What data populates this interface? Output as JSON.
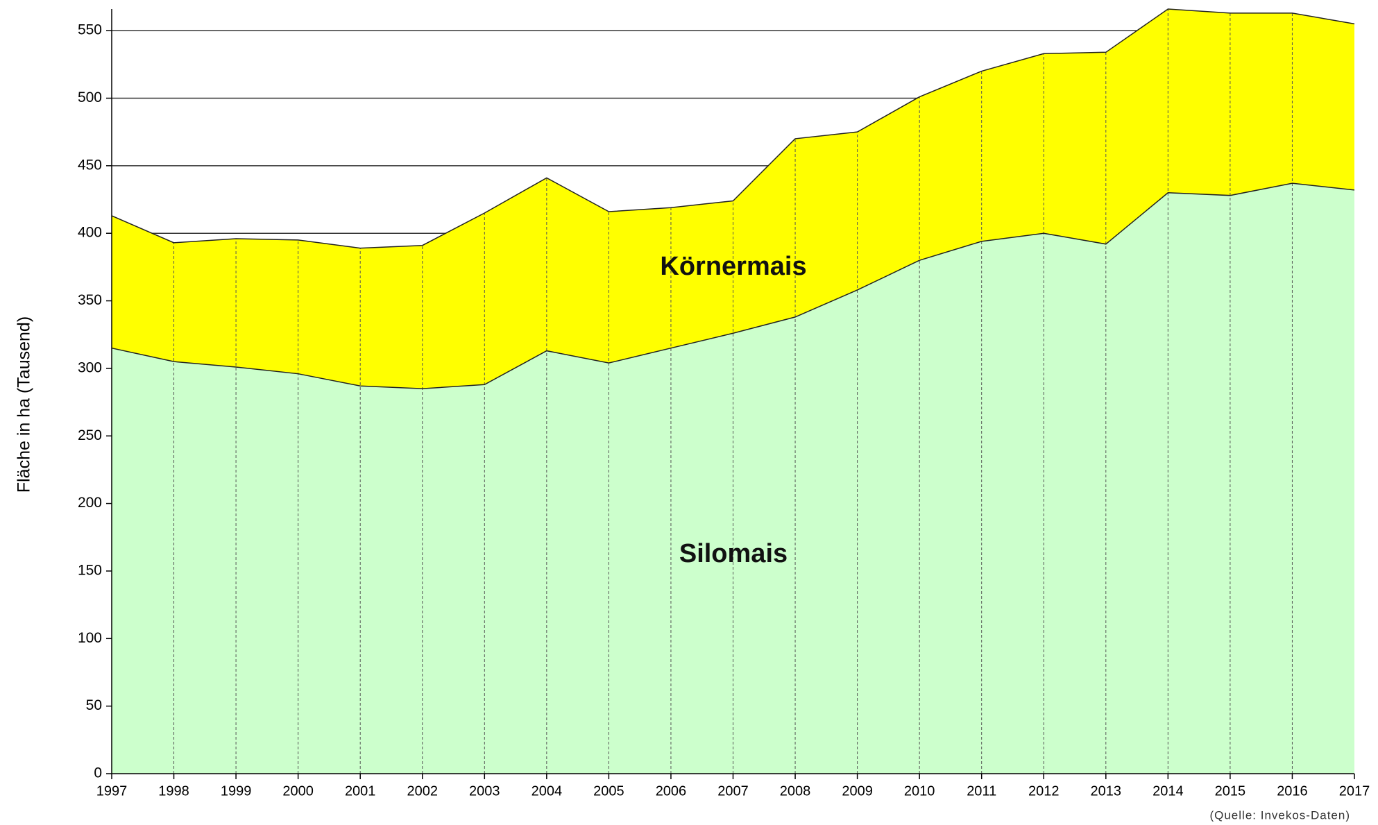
{
  "chart_data": {
    "type": "stacked_area",
    "y_label": "Fläche in ha (Tausend)",
    "note": "(Quelle: Invekos-Daten)",
    "x": [
      1997,
      1998,
      1999,
      2000,
      2001,
      2002,
      2003,
      2004,
      2005,
      2006,
      2007,
      2008,
      2009,
      2010,
      2011,
      2012,
      2013,
      2014,
      2015,
      2016,
      2017
    ],
    "xlim": [
      1997,
      2017
    ],
    "xticks": [
      1997,
      1998,
      1999,
      2000,
      2001,
      2002,
      2003,
      2004,
      2005,
      2006,
      2007,
      2008,
      2009,
      2010,
      2011,
      2012,
      2013,
      2014,
      2015,
      2016,
      2017
    ],
    "ylim": [
      0,
      566
    ],
    "yticks": [
      0,
      50,
      100,
      150,
      200,
      250,
      300,
      350,
      400,
      450,
      500,
      550
    ],
    "grid": true,
    "series": [
      {
        "name": "Silomais",
        "color": "#ccffcc",
        "values": [
          315,
          305,
          301,
          296,
          287,
          285,
          288,
          313,
          304,
          315,
          326,
          338,
          358,
          380,
          394,
          400,
          392,
          430,
          428,
          437,
          432
        ]
      },
      {
        "name": "Körnermais",
        "color": "#ffff00",
        "values": [
          98,
          88,
          95,
          99,
          102,
          106,
          127,
          128,
          112,
          104,
          98,
          132,
          117,
          121,
          126,
          133,
          142,
          136,
          135,
          126,
          123
        ]
      }
    ]
  }
}
